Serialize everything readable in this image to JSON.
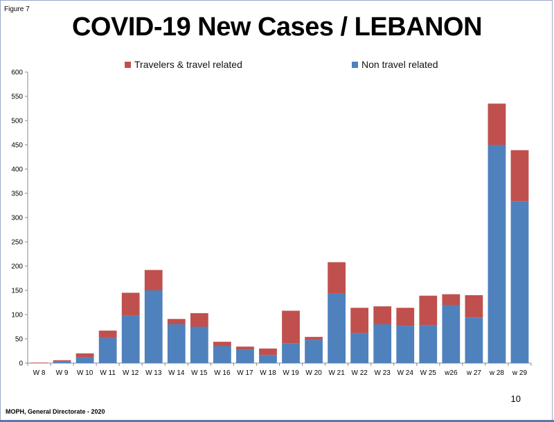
{
  "figure_label": "Figure 7",
  "page_number": "10",
  "footer": "MOPH, General Directorate  - 2020",
  "chart_data": {
    "type": "bar",
    "stacked": true,
    "title": "COVID-19 New Cases / LEBANON",
    "xlabel": "",
    "ylabel": "",
    "ylim": [
      0,
      600
    ],
    "yticks": [
      0,
      50,
      100,
      150,
      200,
      250,
      300,
      350,
      400,
      450,
      500,
      550,
      600
    ],
    "categories": [
      "W 8",
      "W 9",
      "W 10",
      "W 11",
      "W 12",
      "W 13",
      "W 14",
      "W 15",
      "W 16",
      "W 17",
      "W 18",
      "W 19",
      "W 20",
      "W 21",
      "W 22",
      "W 23",
      "W 24",
      "W 25",
      "w26",
      "w 27",
      "w 28",
      "w 29"
    ],
    "series": [
      {
        "name": "Non travel related",
        "color": "#4f81bd",
        "values": [
          0,
          4,
          12,
          52,
          98,
          150,
          80,
          75,
          35,
          28,
          17,
          41,
          48,
          143,
          62,
          80,
          77,
          78,
          120,
          94,
          450,
          334
        ]
      },
      {
        "name": "Travelers & travel related",
        "color": "#c0504d",
        "values": [
          1,
          2,
          8,
          15,
          47,
          42,
          11,
          28,
          9,
          6,
          13,
          67,
          6,
          65,
          52,
          37,
          37,
          61,
          22,
          46,
          85,
          105
        ]
      }
    ],
    "legend_order": [
      "Travelers & travel related",
      "Non travel related"
    ],
    "legend_position": "top"
  }
}
